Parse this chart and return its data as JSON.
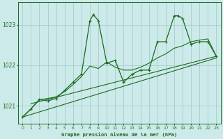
{
  "title": "Graphe pression niveau de la mer (hPa)",
  "bg_color": "#cceaea",
  "grid_color": "#aacccc",
  "line_color": "#1a6b1a",
  "xlim": [
    -0.5,
    23.5
  ],
  "ylim": [
    1020.55,
    1023.55
  ],
  "yticks": [
    1021,
    1022,
    1023
  ],
  "xticks": [
    0,
    1,
    2,
    3,
    4,
    5,
    6,
    7,
    8,
    9,
    10,
    11,
    12,
    13,
    14,
    15,
    16,
    17,
    18,
    19,
    20,
    21,
    22,
    23
  ],
  "line1_x": [
    0,
    23
  ],
  "line1_y": [
    1020.72,
    1022.18
  ],
  "line2_x": [
    1,
    23
  ],
  "line2_y": [
    1021.05,
    1022.22
  ],
  "line3_x": [
    0,
    1,
    2,
    3,
    4,
    5,
    6,
    7,
    8,
    9,
    10,
    11,
    12,
    13,
    14,
    15,
    16,
    17,
    18,
    19,
    20,
    21,
    22,
    23
  ],
  "line3_y": [
    1020.72,
    1020.92,
    1021.15,
    1021.18,
    1021.22,
    1021.35,
    1021.52,
    1021.72,
    1021.98,
    1021.92,
    1022.08,
    1021.95,
    1021.88,
    1021.88,
    1021.95,
    1022.05,
    1022.18,
    1022.28,
    1022.42,
    1022.48,
    1022.58,
    1022.62,
    1022.65,
    1022.22
  ],
  "main_x": [
    0,
    1,
    2,
    3,
    4,
    5,
    6,
    7,
    8,
    8.4,
    9,
    10,
    11,
    12,
    13,
    14,
    15,
    16,
    17,
    18,
    18.5,
    19,
    20,
    21,
    22,
    23
  ],
  "main_y": [
    1020.72,
    1020.92,
    1021.15,
    1021.12,
    1021.18,
    1021.38,
    1021.58,
    1021.78,
    1023.1,
    1023.25,
    1023.1,
    1022.05,
    1022.12,
    1021.58,
    1021.78,
    1021.88,
    1021.88,
    1022.58,
    1022.58,
    1023.22,
    1023.22,
    1023.15,
    1022.52,
    1022.58,
    1022.58,
    1022.22
  ]
}
